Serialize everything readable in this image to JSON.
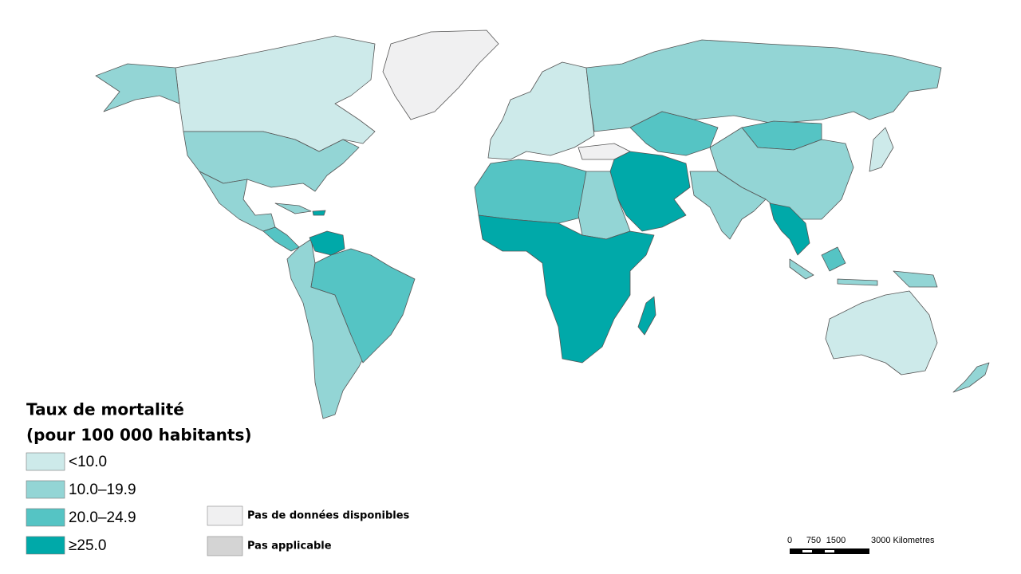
{
  "legend": {
    "title": [
      "Taux de mortalité",
      "(pour 100 000 habitants)"
    ],
    "items": [
      {
        "label": "<10.0",
        "color": "#cdeaea"
      },
      {
        "label": "10.0–19.9",
        "color": "#93d5d5"
      },
      {
        "label": "20.0–24.9",
        "color": "#55c4c4"
      },
      {
        "label": "≥25.0",
        "color": "#00a9a9"
      }
    ],
    "other": [
      {
        "label": "Pas de données disponibles",
        "color": "#f0f0f1"
      },
      {
        "label": "Pas applicable",
        "color": "#d4d4d4"
      }
    ]
  },
  "scale_bar": {
    "labels": [
      "0",
      "750",
      "1500",
      "3000 Kilometres"
    ]
  }
}
